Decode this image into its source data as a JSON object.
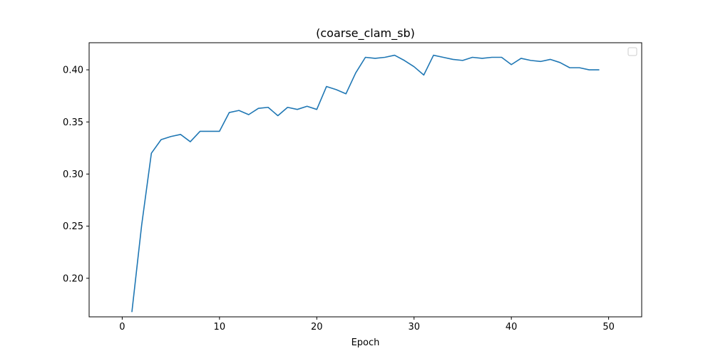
{
  "chart_data": {
    "type": "line",
    "title": "(coarse_clam_sb)",
    "xlabel": "Epoch",
    "ylabel": "",
    "xlim": [
      -3.4,
      53.4
    ],
    "ylim": [
      0.163,
      0.426
    ],
    "xticks": [
      0,
      10,
      20,
      30,
      40,
      50
    ],
    "yticks": [
      0.2,
      0.25,
      0.3,
      0.35,
      0.4
    ],
    "xtick_labels": [
      "0",
      "10",
      "20",
      "30",
      "40",
      "50"
    ],
    "ytick_labels": [
      "0.20",
      "0.25",
      "0.30",
      "0.35",
      "0.40"
    ],
    "grid": false,
    "legend": "top-right (empty)",
    "colors": {
      "line": "#1f77b4",
      "axes": "#000000",
      "legend_border": "#cccccc"
    },
    "series": [
      {
        "x": [
          1,
          2,
          3,
          4,
          5,
          6,
          7,
          8,
          9,
          10,
          11,
          12,
          13,
          14,
          15,
          16,
          17,
          18,
          19,
          20,
          21,
          22,
          23,
          24,
          25,
          26,
          27,
          28,
          29,
          30,
          31,
          32,
          33,
          34,
          35,
          36,
          37,
          38,
          39,
          40,
          41,
          42,
          43,
          44,
          45,
          46,
          47,
          48,
          49
        ],
        "values": [
          0.168,
          0.251,
          0.32,
          0.333,
          0.336,
          0.338,
          0.331,
          0.341,
          0.341,
          0.341,
          0.359,
          0.361,
          0.357,
          0.363,
          0.364,
          0.356,
          0.364,
          0.362,
          0.365,
          0.362,
          0.384,
          0.381,
          0.377,
          0.397,
          0.412,
          0.411,
          0.412,
          0.414,
          0.409,
          0.403,
          0.395,
          0.414,
          0.412,
          0.41,
          0.409,
          0.412,
          0.411,
          0.412,
          0.412,
          0.405,
          0.411,
          0.409,
          0.408,
          0.41,
          0.407,
          0.402,
          0.402,
          0.4,
          0.4
        ]
      }
    ]
  }
}
